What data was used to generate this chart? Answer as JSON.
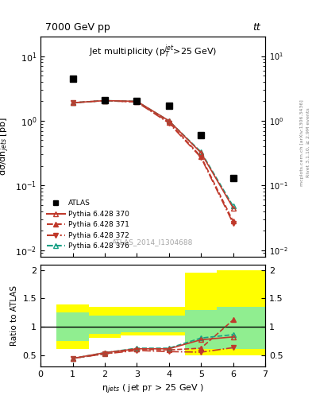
{
  "title_top": "7000 GeV pp",
  "title_top_right": "tt",
  "plot_title": "Jet multiplicity (p$_T^{jet}$>25 GeV)",
  "ylabel_main": "dσ/dn$_{jets}$ [pb]",
  "ylabel_ratio": "Ratio to ATLAS",
  "xlabel": "η$_{jets}$ ( jet p$_T$ > 25 GeV )",
  "watermark": "ATLAS_2014_I1304688",
  "right_label": "mcplots.cern.ch [arXiv:1306.3436]",
  "right_label2": "Rivet 3.1.10, ≥ 2.9M events",
  "atlas_x": [
    1,
    2,
    3,
    4,
    5,
    6
  ],
  "atlas_y": [
    4.5,
    2.1,
    2.0,
    1.7,
    0.6,
    0.13
  ],
  "pythia_x": [
    1,
    2,
    3,
    4,
    5,
    6
  ],
  "p370_y": [
    1.9,
    2.05,
    2.0,
    1.0,
    0.32,
    0.045
  ],
  "p371_y": [
    1.9,
    2.05,
    1.95,
    0.95,
    0.28,
    0.028
  ],
  "p372_y": [
    1.9,
    2.05,
    1.95,
    0.92,
    0.27,
    0.026
  ],
  "p376_y": [
    1.9,
    2.05,
    2.0,
    1.0,
    0.33,
    0.048
  ],
  "ratio370": [
    0.44,
    0.54,
    0.61,
    0.61,
    0.77,
    0.82
  ],
  "ratio371": [
    0.44,
    0.52,
    0.6,
    0.59,
    0.62,
    1.12
  ],
  "ratio372": [
    0.44,
    0.52,
    0.58,
    0.56,
    0.55,
    0.63
  ],
  "ratio376": [
    0.44,
    0.54,
    0.62,
    0.62,
    0.8,
    0.86
  ],
  "band_x": [
    0.5,
    1.5,
    2.5,
    3.5,
    4.5,
    5.5
  ],
  "band_width": [
    1.0,
    1.0,
    1.0,
    1.0,
    1.0,
    1.5
  ],
  "yellow_low": [
    0.6,
    0.8,
    0.85,
    0.85,
    0.5,
    0.5
  ],
  "yellow_high": [
    1.4,
    1.35,
    1.35,
    1.35,
    1.95,
    2.0
  ],
  "green_low": [
    0.75,
    0.88,
    0.9,
    0.9,
    0.6,
    0.6
  ],
  "green_high": [
    1.25,
    1.2,
    1.2,
    1.2,
    1.3,
    1.35
  ],
  "color_370": "#c0392b",
  "color_371": "#c0392b",
  "color_372": "#c0392b",
  "color_376": "#16a085",
  "ylim_main": [
    0.008,
    20
  ],
  "ylim_ratio": [
    0.3,
    2.1
  ],
  "xlim": [
    0,
    7
  ]
}
